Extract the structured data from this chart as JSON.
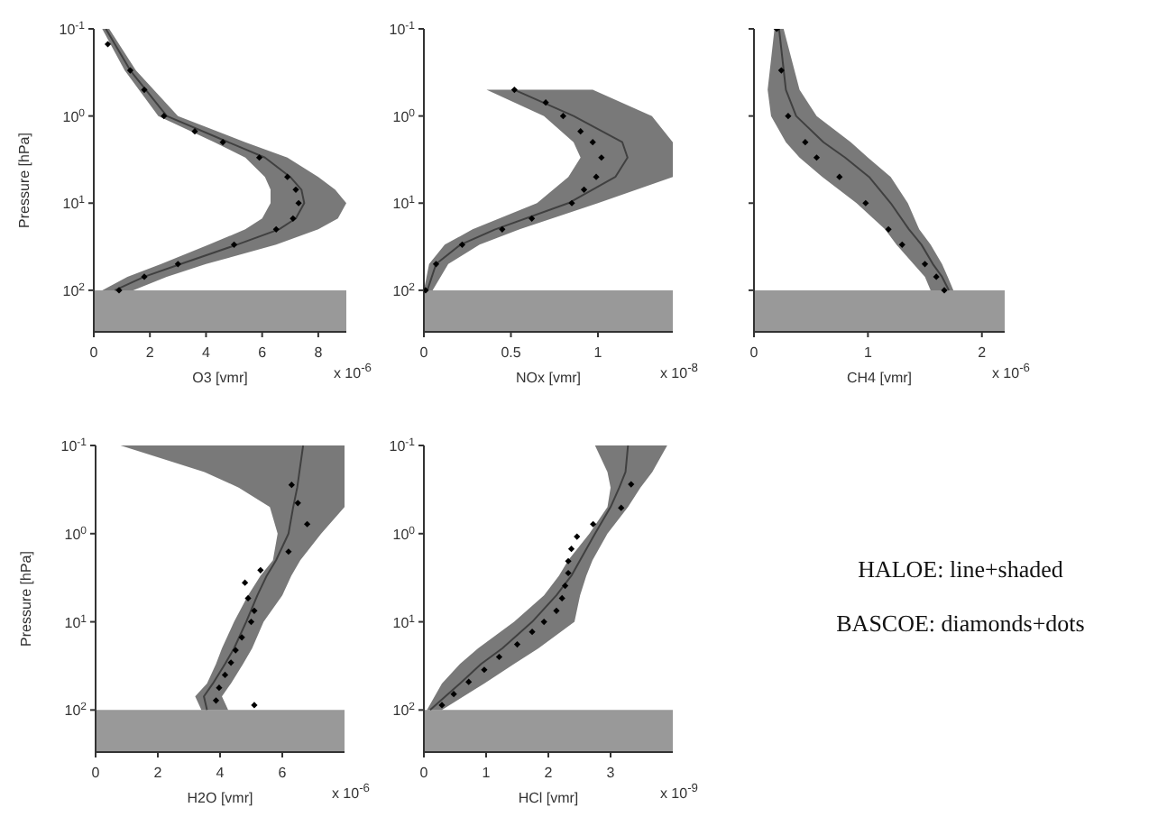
{
  "chart_data": [
    {
      "type": "line",
      "orientation": "horizontal",
      "log": "y",
      "xlabel": "O3 [vmr]",
      "ylabel": "Pressure [hPa]",
      "annotations": [
        "x 10$^{-6}$"
      ],
      "xlim": [
        0,
        9
      ],
      "xticks": [
        0,
        2,
        4,
        6,
        8
      ],
      "ylim": [
        300,
        0.1
      ],
      "yticks": [
        {
          "value": 0.1,
          "label": "10$^{-1}$"
        },
        {
          "value": 1,
          "label": "10$^{0}$"
        },
        {
          "value": 10,
          "label": "10$^{1}$"
        },
        {
          "value": 100,
          "label": "10$^{2}$"
        }
      ],
      "bands": [
        {
          "axis": "y",
          "from": 100,
          "to": 300,
          "color": "#999999"
        }
      ],
      "series": [
        {
          "type": "line",
          "color": "#404040",
          "x": [
            0.1,
            0.3,
            1,
            2,
            3,
            5,
            7,
            10,
            15,
            20,
            30,
            50,
            70,
            100
          ],
          "values": [
            0.43,
            1.3,
            2.6,
            4.8,
            6.1,
            7.0,
            7.4,
            7.5,
            7.2,
            6.6,
            5.1,
            3.1,
            1.8,
            0.75
          ],
          "lower": [
            0.3,
            1.1,
            2.3,
            4.3,
            5.4,
            6.1,
            6.3,
            6.3,
            6.0,
            5.4,
            4.1,
            2.4,
            1.2,
            0.3
          ],
          "upper": [
            0.55,
            1.5,
            3.0,
            5.4,
            6.9,
            8.0,
            8.6,
            9,
            8.7,
            8.0,
            6.5,
            4.0,
            2.6,
            1.4
          ]
        },
        {
          "type": "scatter",
          "marker": "diamond",
          "color": "#000000",
          "x": [
            0.15,
            0.3,
            0.5,
            1,
            1.5,
            2,
            3,
            5,
            7,
            10,
            15,
            20,
            30,
            50,
            70,
            100
          ],
          "values": [
            0.5,
            1.3,
            1.8,
            2.5,
            3.6,
            4.6,
            5.9,
            6.9,
            7.2,
            7.3,
            7.1,
            6.5,
            5.0,
            3.0,
            1.8,
            0.9
          ]
        }
      ]
    },
    {
      "type": "line",
      "orientation": "horizontal",
      "log": "y",
      "xlabel": "NOx [vmr]",
      "annotations": [
        "x 10$^{-8}$"
      ],
      "xlim": [
        0,
        1.43
      ],
      "xticks": [
        0,
        0.5,
        1
      ],
      "ylim": [
        300,
        0.1
      ],
      "yticks": [
        {
          "value": 0.1,
          "label": "10$^{-1}$"
        },
        {
          "value": 1,
          "label": "10$^{0}$"
        },
        {
          "value": 10,
          "label": "10$^{1}$"
        },
        {
          "value": 100,
          "label": "10$^{2}$"
        }
      ],
      "bands": [
        {
          "axis": "y",
          "from": 100,
          "to": 300,
          "color": "#999999"
        }
      ],
      "series": [
        {
          "type": "line",
          "color": "#404040",
          "x": [
            0.5,
            1,
            2,
            3,
            5,
            10,
            20,
            30,
            50,
            100
          ],
          "values": [
            0.52,
            0.86,
            1.14,
            1.17,
            1.1,
            0.83,
            0.41,
            0.21,
            0.07,
            0.02
          ],
          "lower": [
            0.36,
            0.69,
            0.86,
            0.9,
            0.83,
            0.65,
            0.28,
            0.12,
            0.03,
            0
          ],
          "upper": [
            0.97,
            1.31,
            1.43,
            1.43,
            1.43,
            1.0,
            0.55,
            0.32,
            0.14,
            0.05
          ]
        },
        {
          "type": "scatter",
          "marker": "diamond",
          "color": "#000000",
          "x": [
            0.5,
            0.7,
            1,
            1.5,
            2,
            3,
            5,
            7,
            10,
            15,
            20,
            30,
            50,
            100
          ],
          "values": [
            0.52,
            0.7,
            0.8,
            0.9,
            0.97,
            1.02,
            0.99,
            0.92,
            0.85,
            0.62,
            0.45,
            0.22,
            0.07,
            0.01
          ]
        }
      ]
    },
    {
      "type": "line",
      "orientation": "horizontal",
      "log": "y",
      "tick_labels": "x",
      "xlabel": "CH4 [vmr]",
      "annotations": [
        "x 10$^{-6}$"
      ],
      "xlim": [
        0,
        2.2
      ],
      "xticks": [
        0,
        1,
        2
      ],
      "ylim": [
        300,
        0.1
      ],
      "yticks": [
        {
          "value": 0.1,
          "label": null
        },
        {
          "value": 1,
          "label": null
        },
        {
          "value": 10,
          "label": null
        },
        {
          "value": 100,
          "label": null
        }
      ],
      "bands": [
        {
          "axis": "y",
          "from": 100,
          "to": 300,
          "color": "#999999"
        }
      ],
      "series": [
        {
          "type": "line",
          "color": "#404040",
          "x": [
            0.1,
            0.5,
            1,
            2,
            3,
            5,
            10,
            20,
            30,
            50,
            70,
            100
          ],
          "values": [
            0.22,
            0.28,
            0.37,
            0.61,
            0.8,
            1.01,
            1.2,
            1.36,
            1.47,
            1.57,
            1.65,
            1.71
          ],
          "lower": [
            0.18,
            0.12,
            0.15,
            0.28,
            0.4,
            0.6,
            0.9,
            1.15,
            1.25,
            1.4,
            1.5,
            1.55
          ],
          "upper": [
            0.26,
            0.4,
            0.55,
            0.85,
            1.0,
            1.2,
            1.35,
            1.45,
            1.55,
            1.65,
            1.7,
            1.75
          ]
        },
        {
          "type": "scatter",
          "marker": "diamond",
          "color": "#000000",
          "x": [
            0.1,
            0.3,
            1,
            2,
            3,
            5,
            10,
            20,
            30,
            50,
            70,
            100
          ],
          "values": [
            0.2,
            0.24,
            0.3,
            0.45,
            0.55,
            0.75,
            0.98,
            1.18,
            1.3,
            1.5,
            1.6,
            1.67
          ]
        }
      ]
    },
    {
      "type": "line",
      "orientation": "horizontal",
      "log": "y",
      "xlabel": "H2O [vmr]",
      "ylabel": "Pressure [hPa]",
      "annotations": [
        "x 10$^{-6}$"
      ],
      "xlim": [
        0,
        8
      ],
      "xticks": [
        0,
        2,
        4,
        6
      ],
      "ylim": [
        300,
        0.1
      ],
      "yticks": [
        {
          "value": 0.1,
          "label": "10$^{-1}$"
        },
        {
          "value": 1,
          "label": "10$^{0}$"
        },
        {
          "value": 10,
          "label": "10$^{1}$"
        },
        {
          "value": 100,
          "label": "10$^{2}$"
        }
      ],
      "bands": [
        {
          "axis": "y",
          "from": 100,
          "to": 300,
          "color": "#999999"
        }
      ],
      "series": [
        {
          "type": "line",
          "color": "#404040",
          "x": [
            0.1,
            0.2,
            0.3,
            0.5,
            1,
            2,
            3,
            5,
            10,
            20,
            30,
            50,
            70,
            100
          ],
          "values": [
            6.67,
            6.55,
            6.48,
            6.35,
            6.2,
            5.8,
            5.5,
            5.2,
            4.84,
            4.45,
            4.16,
            3.77,
            3.48,
            3.58
          ],
          "lower": [
            0.8,
            3.5,
            4.6,
            5.6,
            5.85,
            5.7,
            5.3,
            4.9,
            4.45,
            4.06,
            3.87,
            3.58,
            3.2,
            3.4
          ],
          "upper": [
            8,
            8,
            8,
            8,
            7.25,
            6.58,
            6.29,
            6.0,
            5.4,
            5.03,
            4.74,
            4.35,
            4.06,
            4.26
          ]
        },
        {
          "type": "scatter",
          "marker": "diamond",
          "color": "#000000",
          "x": [
            0.28,
            0.45,
            0.78,
            1.6,
            2.6,
            3.6,
            5.4,
            7.5,
            10,
            15,
            21,
            29,
            40,
            56,
            78,
            88
          ],
          "values": [
            6.3,
            6.5,
            6.8,
            6.2,
            5.3,
            4.8,
            4.9,
            5.1,
            5.0,
            4.7,
            4.5,
            4.35,
            4.16,
            3.97,
            3.87,
            5.1
          ]
        }
      ]
    },
    {
      "type": "line",
      "orientation": "horizontal",
      "log": "y",
      "xlabel": "HCl [vmr]",
      "annotations": [
        "x 10$^{-9}$"
      ],
      "xlim": [
        0,
        4
      ],
      "xticks": [
        0,
        1,
        2,
        3
      ],
      "ylim": [
        300,
        0.1
      ],
      "yticks": [
        {
          "value": 0.1,
          "label": "10$^{-1}$"
        },
        {
          "value": 1,
          "label": "10$^{0}$"
        },
        {
          "value": 10,
          "label": "10$^{1}$"
        },
        {
          "value": 100,
          "label": "10$^{2}$"
        }
      ],
      "bands": [
        {
          "axis": "y",
          "from": 100,
          "to": 300,
          "color": "#999999"
        }
      ],
      "series": [
        {
          "type": "line",
          "color": "#404040",
          "x": [
            0.1,
            0.2,
            0.3,
            0.5,
            1,
            2,
            3,
            5,
            10,
            20,
            30,
            50,
            100
          ],
          "values": [
            3.28,
            3.24,
            3.14,
            3.0,
            2.75,
            2.51,
            2.37,
            2.13,
            1.74,
            1.26,
            0.92,
            0.58,
            0.1
          ],
          "lower": [
            2.75,
            2.95,
            3.0,
            2.95,
            2.66,
            2.32,
            2.17,
            1.93,
            1.45,
            0.87,
            0.58,
            0.29,
            0.05
          ],
          "upper": [
            3.91,
            3.67,
            3.48,
            3.28,
            2.95,
            2.71,
            2.61,
            2.51,
            2.42,
            1.84,
            1.45,
            0.97,
            0.29
          ]
        },
        {
          "type": "scatter",
          "marker": "diamond",
          "color": "#000000",
          "x": [
            0.276,
            0.51,
            0.78,
            1.08,
            1.49,
            2.05,
            2.8,
            3.9,
            5.4,
            7.5,
            10,
            13,
            18,
            25,
            35,
            48,
            66,
            88
          ],
          "values": [
            3.33,
            3.17,
            2.72,
            2.46,
            2.37,
            2.32,
            2.32,
            2.27,
            2.22,
            2.13,
            1.93,
            1.74,
            1.5,
            1.21,
            0.97,
            0.72,
            0.48,
            0.29
          ]
        }
      ]
    },
    {
      "type": "other",
      "annotations": [
        "HALOE: line+shaded",
        "BASCOE: diamonds+dots"
      ]
    }
  ]
}
